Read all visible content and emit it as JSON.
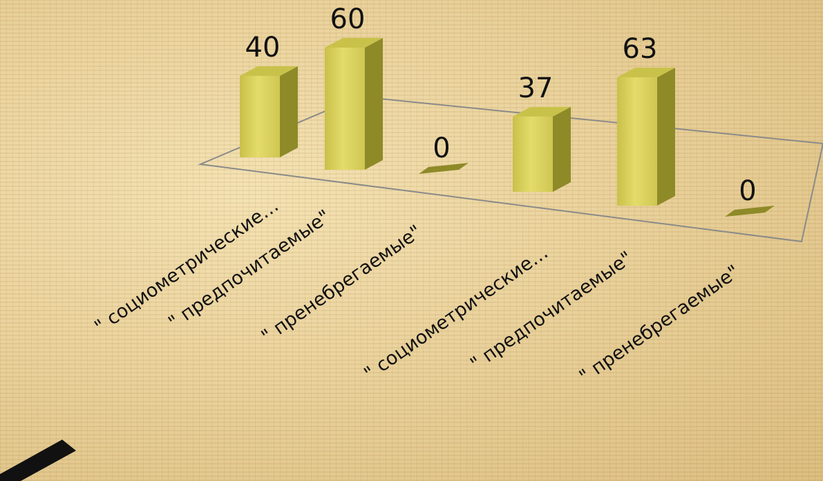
{
  "chart_data": {
    "type": "bar",
    "categories": [
      "\" социометрические…",
      "\" предпочитаемые\"",
      "\" пренебрегаемые\"",
      "\" социометрические…",
      "\" предпочитаемые\"",
      "\" пренебрегаемые\""
    ],
    "values": [
      40,
      60,
      0,
      37,
      63,
      0
    ],
    "grid": false,
    "legend": "none"
  },
  "colors": {
    "bar_front": "#d8cf58",
    "bar_side": "#8e8a28",
    "bar_top": "#c9c24a",
    "floor_line": "#8a8a8a"
  }
}
